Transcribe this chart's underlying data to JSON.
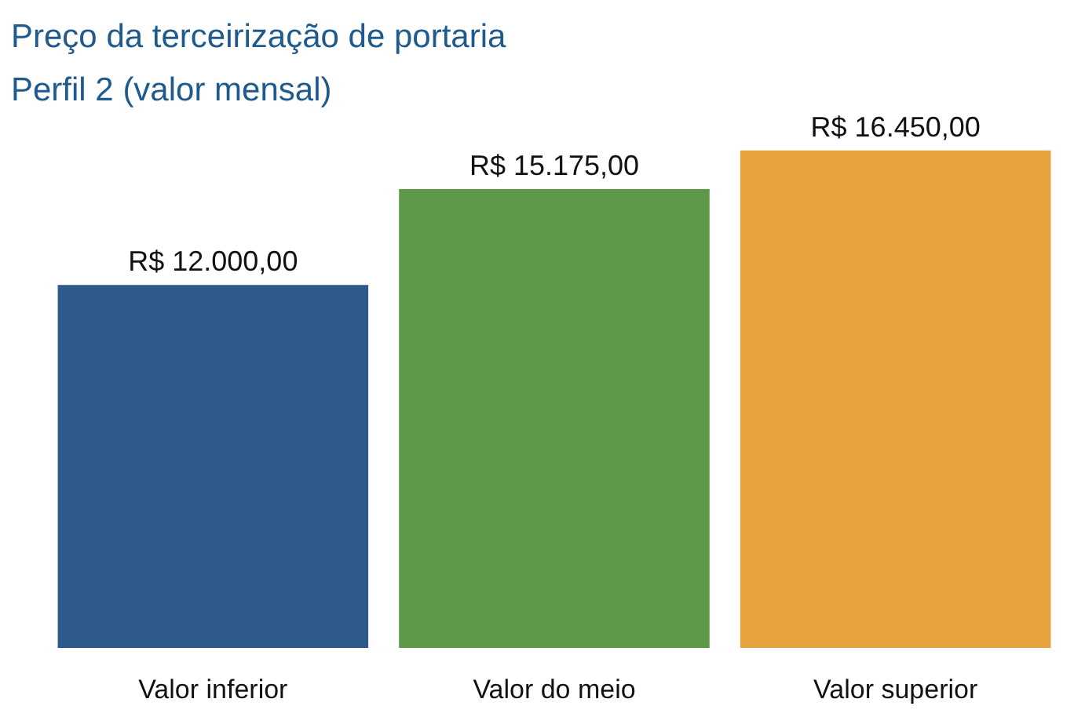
{
  "chart_data": {
    "type": "bar",
    "title": "Preço da terceirização de portaria",
    "subtitle": "Perfil 2 (valor mensal)",
    "categories": [
      "Valor inferior",
      "Valor do meio",
      "Valor superior"
    ],
    "values": [
      12000,
      15175,
      16450
    ],
    "colors": [
      "#2d5a8a",
      "#5e9849",
      "#e6a23c"
    ],
    "value_labels": [
      "R$ 12.000,00",
      "R$ 15.175,00",
      "R$ 16.450,00"
    ]
  }
}
